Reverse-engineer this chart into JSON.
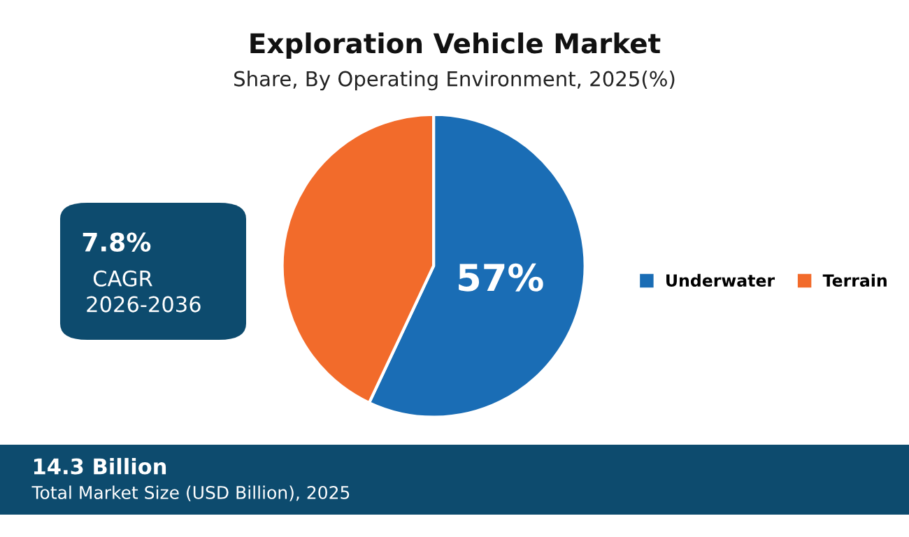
{
  "chart_data": {
    "type": "pie",
    "title": "Exploration Vehicle Market",
    "subtitle": "Share, By Operating Environment, 2025(%)",
    "categories": [
      "Underwater",
      "Terrain"
    ],
    "values": [
      57,
      43
    ],
    "colors": [
      "#1a6db5",
      "#f26b2b"
    ],
    "value_labels": [
      "57%",
      null
    ],
    "legend": "right",
    "annotations": [
      "7.8%",
      "CAGR",
      "2026-2036",
      "14.3 Billion",
      "Total Market Size (USD Billion), 2025"
    ]
  }
}
